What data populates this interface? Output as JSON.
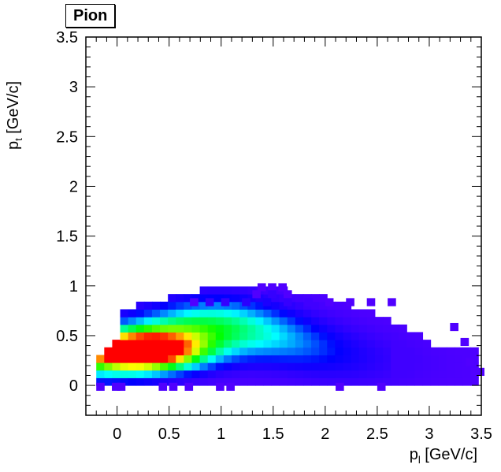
{
  "title": "Pion",
  "chart_data": {
    "type": "heatmap",
    "title": "Pion",
    "xlabel_main": "p",
    "xlabel_sub": "l",
    "xlabel_unit": " [GeV/c]",
    "ylabel_main": "p",
    "ylabel_sub": "t",
    "ylabel_unit": " [GeV/c]",
    "xlim": [
      -0.3,
      3.5
    ],
    "ylim": [
      -0.3,
      3.5
    ],
    "x_ticks": [
      {
        "v": 0,
        "label": "0"
      },
      {
        "v": 0.5,
        "label": "0.5"
      },
      {
        "v": 1,
        "label": "1"
      },
      {
        "v": 1.5,
        "label": "1.5"
      },
      {
        "v": 2,
        "label": "2"
      },
      {
        "v": 2.5,
        "label": "2.5"
      },
      {
        "v": 3,
        "label": "3"
      },
      {
        "v": 3.5,
        "label": "3.5"
      }
    ],
    "y_ticks": [
      {
        "v": 0,
        "label": "0"
      },
      {
        "v": 0.5,
        "label": "0.5"
      },
      {
        "v": 1,
        "label": "1"
      },
      {
        "v": 1.5,
        "label": "1.5"
      },
      {
        "v": 2,
        "label": "2"
      },
      {
        "v": 2.5,
        "label": "2.5"
      },
      {
        "v": 3,
        "label": "3"
      },
      {
        "v": 3.5,
        "label": "3.5"
      }
    ],
    "bin_size": [
      0.0765,
      0.0765
    ],
    "hot_spot": [
      0.2,
      0.3
    ],
    "grid": false,
    "colormap": [
      "#6a00ff",
      "#0000ff",
      "#00ffff",
      "#00ff00",
      "#ffff00",
      "#ff0000"
    ],
    "cells": [
      {
        "x": -0.2,
        "y": -0.05,
        "v": 0.05
      },
      {
        "x": -0.05,
        "y": -0.05,
        "v": 0.05
      },
      {
        "x": 0.0,
        "y": -0.05,
        "v": 0.05
      },
      {
        "x": 0.4,
        "y": -0.05,
        "v": 0.05
      },
      {
        "x": 0.5,
        "y": -0.05,
        "v": 0.05
      },
      {
        "x": 0.65,
        "y": -0.05,
        "v": 0.05
      },
      {
        "x": 0.95,
        "y": -0.05,
        "v": 0.05
      },
      {
        "x": 1.05,
        "y": -0.05,
        "v": 0.05
      },
      {
        "x": 2.1,
        "y": -0.05,
        "v": 0.05
      },
      {
        "x": 2.5,
        "y": -0.05,
        "v": 0.05
      },
      {
        "x": 1.35,
        "y": 0.95,
        "v": 0.05
      },
      {
        "x": 1.45,
        "y": 0.95,
        "v": 0.05
      },
      {
        "x": 1.55,
        "y": 0.95,
        "v": 0.05
      },
      {
        "x": 1.3,
        "y": 0.88,
        "v": 0.05
      },
      {
        "x": 1.45,
        "y": 0.88,
        "v": 0.1
      },
      {
        "x": 1.6,
        "y": 0.88,
        "v": 0.05
      },
      {
        "x": 0.7,
        "y": 0.8,
        "v": 0.05
      },
      {
        "x": 0.85,
        "y": 0.8,
        "v": 0.1
      },
      {
        "x": 1.0,
        "y": 0.8,
        "v": 0.1
      },
      {
        "x": 1.2,
        "y": 0.8,
        "v": 0.12
      },
      {
        "x": 1.4,
        "y": 0.8,
        "v": 0.15
      },
      {
        "x": 1.6,
        "y": 0.8,
        "v": 0.1
      },
      {
        "x": 1.8,
        "y": 0.8,
        "v": 0.08
      },
      {
        "x": 2.0,
        "y": 0.8,
        "v": 0.05
      },
      {
        "x": 2.2,
        "y": 0.8,
        "v": 0.05
      },
      {
        "x": 2.4,
        "y": 0.8,
        "v": 0.05
      },
      {
        "x": 2.6,
        "y": 0.8,
        "v": 0.05
      },
      {
        "x": 3.2,
        "y": 0.55,
        "v": 0.05
      },
      {
        "x": 3.3,
        "y": 0.4,
        "v": 0.05
      },
      {
        "x": 3.35,
        "y": 0.2,
        "v": 0.05
      },
      {
        "x": 3.4,
        "y": 0.1,
        "v": 0.05
      },
      {
        "x": 3.45,
        "y": 0.1,
        "v": 0.05
      }
    ]
  }
}
